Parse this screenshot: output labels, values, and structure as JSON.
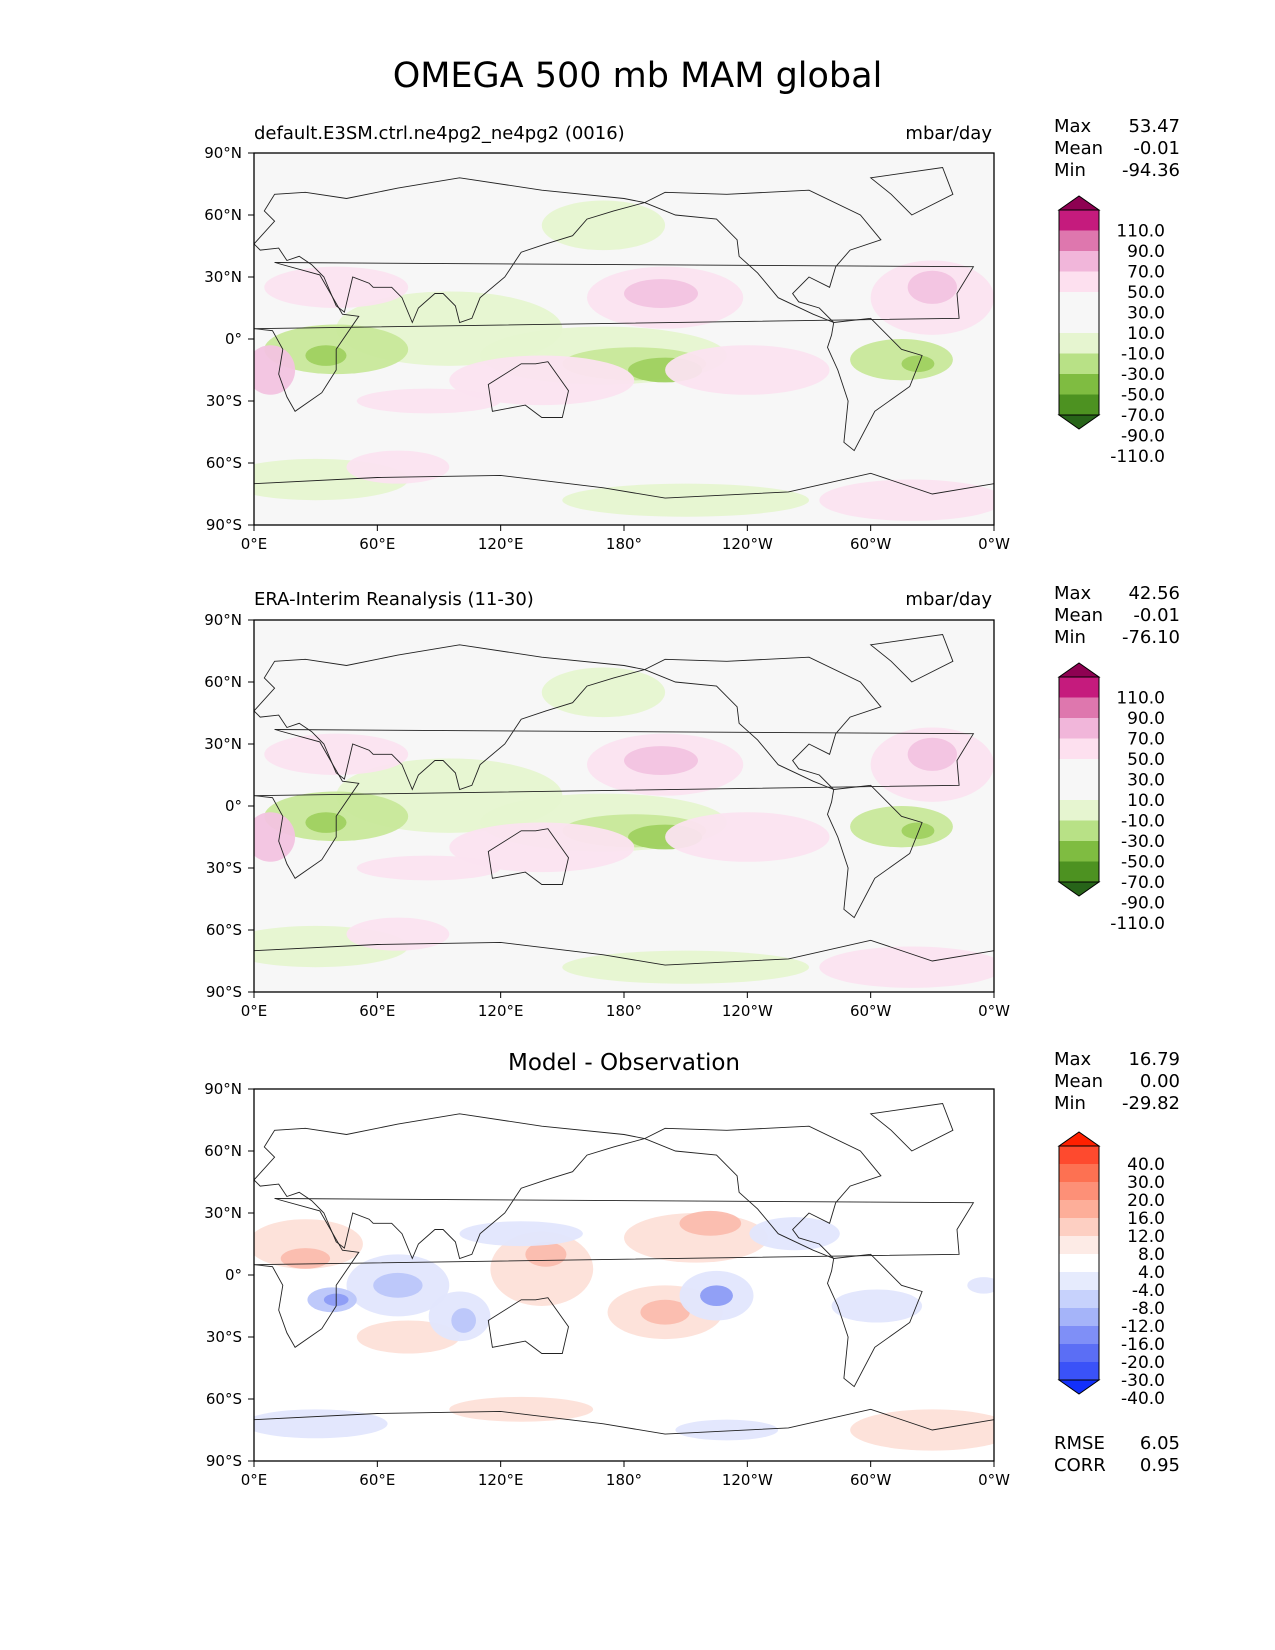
{
  "title": "OMEGA 500 mb MAM global",
  "panels": [
    {
      "title_left": "default.E3SM.ctrl.ne4pg2_ne4pg2 (0016)",
      "title_right": "mbar/day",
      "title_center": "",
      "stats": [
        {
          "label": "Max",
          "value": "53.47"
        },
        {
          "label": "Mean",
          "value": "-0.01"
        },
        {
          "label": "Min",
          "value": "-94.36"
        }
      ],
      "extra_stats": [],
      "colorbar": {
        "labels": [
          "110.0",
          "90.0",
          "70.0",
          "50.0",
          "30.0",
          "10.0",
          "-10.0",
          "-30.0",
          "-50.0",
          "-70.0",
          "-90.0",
          "-110.0"
        ],
        "colors": [
          "#8e0152",
          "#c51b7d",
          "#de77ae",
          "#f1b6da",
          "#fde0ef",
          "#f7f7f7",
          "#f7f7f7",
          "#e6f5d0",
          "#b8e186",
          "#7fbc41",
          "#4d9221",
          "#276419"
        ]
      },
      "fill_colors": {
        "pink_light": "#fbe3f0",
        "pink_mid": "#f2c3e0",
        "pink_dark": "#e49ccc",
        "green_light": "#e6f5d0",
        "green_mid": "#c8e89a",
        "green_dark": "#9fd160",
        "green_deep": "#5aa22e"
      }
    },
    {
      "title_left": "ERA-Interim Reanalysis (11-30)",
      "title_right": "mbar/day",
      "title_center": "",
      "stats": [
        {
          "label": "Max",
          "value": "42.56"
        },
        {
          "label": "Mean",
          "value": "-0.01"
        },
        {
          "label": "Min",
          "value": "-76.10"
        }
      ],
      "extra_stats": [],
      "colorbar": {
        "labels": [
          "110.0",
          "90.0",
          "70.0",
          "50.0",
          "30.0",
          "10.0",
          "-10.0",
          "-30.0",
          "-50.0",
          "-70.0",
          "-90.0",
          "-110.0"
        ],
        "colors": [
          "#8e0152",
          "#c51b7d",
          "#de77ae",
          "#f1b6da",
          "#fde0ef",
          "#f7f7f7",
          "#f7f7f7",
          "#e6f5d0",
          "#b8e186",
          "#7fbc41",
          "#4d9221",
          "#276419"
        ]
      },
      "fill_colors": {
        "pink_light": "#fbe3f0",
        "pink_mid": "#f2c3e0",
        "pink_dark": "#e49ccc",
        "green_light": "#e6f5d0",
        "green_mid": "#c8e89a",
        "green_dark": "#9fd160",
        "green_deep": "#5aa22e"
      }
    },
    {
      "title_left": "",
      "title_right": "",
      "title_center": "Model - Observation",
      "stats": [
        {
          "label": "Max",
          "value": "16.79"
        },
        {
          "label": "Mean",
          "value": "0.00"
        },
        {
          "label": "Min",
          "value": "-29.82"
        }
      ],
      "extra_stats": [
        {
          "label": "RMSE",
          "value": "6.05"
        },
        {
          "label": "CORR",
          "value": "0.95"
        }
      ],
      "colorbar": {
        "labels": [
          "40.0",
          "30.0",
          "20.0",
          "16.0",
          "12.0",
          "8.0",
          "4.0",
          "-4.0",
          "-8.0",
          "-12.0",
          "-16.0",
          "-20.0",
          "-30.0",
          "-40.0"
        ],
        "colors": [
          "#ff2000",
          "#fe4a2e",
          "#fd7152",
          "#fd9077",
          "#fdae99",
          "#fdcfc2",
          "#fdebe6",
          "#ffffff",
          "#e6ebfd",
          "#c7d2fc",
          "#a5b4f9",
          "#7f8ff7",
          "#5b6ef5",
          "#3a52f8",
          "#1230fb"
        ]
      },
      "fill_colors": {
        "pink_light": "#fde0d8",
        "pink_mid": "#fbbcae",
        "pink_dark": "#f8927f",
        "green_light": "#e1e6fd",
        "green_mid": "#bac6fa",
        "green_dark": "#8c9cf6",
        "green_deep": "#4860f2"
      }
    }
  ],
  "map_axes": {
    "lat_ticks": [
      "90°N",
      "60°N",
      "30°N",
      "0°",
      "30°S",
      "60°S",
      "90°S"
    ],
    "lon_ticks": [
      "0°E",
      "60°E",
      "120°E",
      "180°",
      "120°W",
      "60°W",
      "0°W"
    ]
  },
  "chart_data": {
    "type": "heatmap",
    "variable": "OMEGA 500 mb MAM global",
    "units": "mbar/day",
    "projection": "PlateCarree",
    "xlim": [
      0,
      360
    ],
    "ylim": [
      -90,
      90
    ],
    "panels": [
      {
        "name": "default.E3SM.ctrl.ne4pg2_ne4pg2 (0016)",
        "max": 53.47,
        "mean": -0.01,
        "min": -94.36,
        "levels": [
          -110,
          -90,
          -70,
          -50,
          -30,
          -10,
          10,
          30,
          50,
          70,
          90,
          110
        ]
      },
      {
        "name": "ERA-Interim Reanalysis (11-30)",
        "max": 42.56,
        "mean": -0.01,
        "min": -76.1,
        "levels": [
          -110,
          -90,
          -70,
          -50,
          -30,
          -10,
          10,
          30,
          50,
          70,
          90,
          110
        ]
      },
      {
        "name": "Model - Observation",
        "max": 16.79,
        "mean": 0.0,
        "min": -29.82,
        "rmse": 6.05,
        "corr": 0.95,
        "levels": [
          -40,
          -30,
          -20,
          -16,
          -12,
          -8,
          -4,
          4,
          8,
          12,
          16,
          20,
          30,
          40
        ]
      }
    ]
  }
}
